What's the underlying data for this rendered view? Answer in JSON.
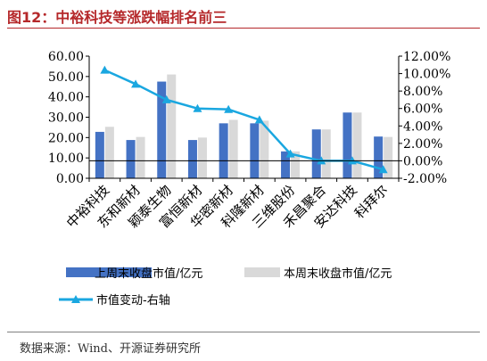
{
  "figure": {
    "title": "图12：中裕科技等涨跌幅排名前三",
    "source": "数据来源：Wind、开源证券研究所"
  },
  "colors": {
    "title": "#b5282a",
    "bar_this_week": "#4472c4",
    "bar_last_week": "#d9d9d9",
    "line": "#1aa7e0"
  },
  "chart_data": {
    "type": "bar",
    "categories": [
      "中裕科技",
      "东和新材",
      "颖泰生物",
      "富恒新材",
      "华密新材",
      "科隆新材",
      "三维股份",
      "禾昌聚合",
      "安达科技",
      "科拜尔"
    ],
    "series": [
      {
        "name": "上周末收盘市值/亿元",
        "type": "bar",
        "axis": "left",
        "values": [
          22.8,
          18.8,
          47.5,
          18.8,
          27.0,
          27.0,
          13.2,
          24.0,
          32.3,
          20.5
        ]
      },
      {
        "name": "本周末收盘市值/亿元",
        "type": "bar",
        "axis": "left",
        "values": [
          25.3,
          20.3,
          51.0,
          20.0,
          28.7,
          28.3,
          13.2,
          24.0,
          32.3,
          20.3
        ]
      },
      {
        "name": "市值变动-右轴",
        "type": "line",
        "axis": "right",
        "marker": "triangle",
        "values": [
          10.4,
          8.8,
          7.0,
          6.0,
          5.9,
          4.7,
          0.8,
          0.0,
          0.0,
          -1.0
        ]
      }
    ],
    "y_left": {
      "ylim": [
        0,
        60
      ],
      "ticks": [
        "0.00",
        "10.00",
        "20.00",
        "30.00",
        "40.00",
        "50.00",
        "60.00"
      ]
    },
    "y_right": {
      "ylim": [
        -2,
        12
      ],
      "ticks": [
        "-2.00%",
        "0.00%",
        "2.00%",
        "4.00%",
        "6.00%",
        "8.00%",
        "10.00%",
        "12.00%"
      ]
    },
    "grid": false,
    "legend_position": "bottom"
  }
}
